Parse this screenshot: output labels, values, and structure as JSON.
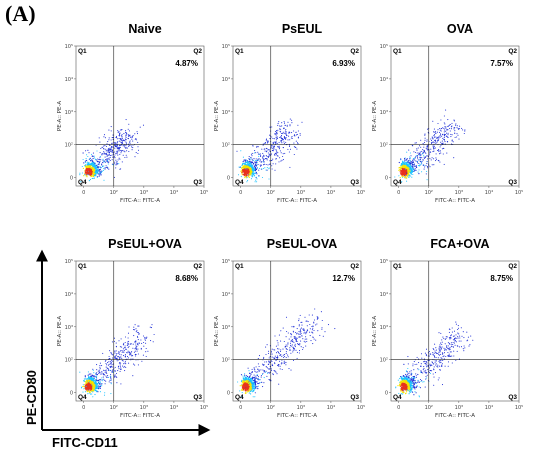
{
  "figure_label": "(A)",
  "axis_titles": {
    "x": "FITC-CD11",
    "y": "PE-CD80"
  },
  "colors": {
    "dots": "#1f2fd6",
    "mid": "#19c2ff",
    "hot": "#f5e400",
    "core": "#e8321e"
  },
  "chart_data": [
    {
      "type": "scatter",
      "title": "Naive",
      "xlabel": "FITC-A:: FITC-A",
      "ylabel": "PE-A:: PE-A",
      "quadrants": {
        "q1": "Q1",
        "q2": "Q2",
        "q3": "Q3",
        "q4": "Q4"
      },
      "q2_percent": "4.87%",
      "x_gate": 100,
      "y_gate": 100,
      "xticks": [
        "0",
        "10²",
        "10³",
        "10⁴",
        "10⁵"
      ],
      "yticks": [
        "0",
        "10²",
        "10³",
        "10⁴",
        "10⁵"
      ]
    },
    {
      "type": "scatter",
      "title": "PsEUL",
      "xlabel": "FITC-A:: FITC-A",
      "ylabel": "PE-A:: PE-A",
      "quadrants": {
        "q1": "Q1",
        "q2": "Q2",
        "q3": "Q3",
        "q4": "Q4"
      },
      "q2_percent": "6.93%",
      "x_gate": 100,
      "y_gate": 100,
      "xticks": [
        "0",
        "10²",
        "10³",
        "10⁴",
        "10⁵"
      ],
      "yticks": [
        "0",
        "10²",
        "10³",
        "10⁴",
        "10⁵"
      ]
    },
    {
      "type": "scatter",
      "title": "OVA",
      "xlabel": "FITC-A:: FITC-A",
      "ylabel": "PE-A:: PE-A",
      "quadrants": {
        "q1": "Q1",
        "q2": "Q2",
        "q3": "Q3",
        "q4": "Q4"
      },
      "q2_percent": "7.57%",
      "x_gate": 100,
      "y_gate": 100,
      "xticks": [
        "0",
        "10²",
        "10³",
        "10⁴",
        "10⁵"
      ],
      "yticks": [
        "0",
        "10²",
        "10³",
        "10⁴",
        "10⁵"
      ]
    },
    {
      "type": "scatter",
      "title": "PsEUL+OVA",
      "xlabel": "FITC-A:: FITC-A",
      "ylabel": "PE-A:: PE-A",
      "quadrants": {
        "q1": "Q1",
        "q2": "Q2",
        "q3": "Q3",
        "q4": "Q4"
      },
      "q2_percent": "8.68%",
      "x_gate": 100,
      "y_gate": 100,
      "xticks": [
        "0",
        "10²",
        "10³",
        "10⁴",
        "10⁵"
      ],
      "yticks": [
        "0",
        "10²",
        "10³",
        "10⁴",
        "10⁵"
      ]
    },
    {
      "type": "scatter",
      "title": "PsEUL-OVA",
      "xlabel": "FITC-A:: FITC-A",
      "ylabel": "PE-A:: PE-A",
      "quadrants": {
        "q1": "Q1",
        "q2": "Q2",
        "q3": "Q3",
        "q4": "Q4"
      },
      "q2_percent": "12.7%",
      "x_gate": 100,
      "y_gate": 100,
      "xticks": [
        "0",
        "10²",
        "10³",
        "10⁴",
        "10⁵"
      ],
      "yticks": [
        "0",
        "10²",
        "10³",
        "10⁴",
        "10⁵"
      ]
    },
    {
      "type": "scatter",
      "title": "FCA+OVA",
      "xlabel": "FITC-A:: FITC-A",
      "ylabel": "PE-A:: PE-A",
      "quadrants": {
        "q1": "Q1",
        "q2": "Q2",
        "q3": "Q3",
        "q4": "Q4"
      },
      "q2_percent": "8.75%",
      "x_gate": 100,
      "y_gate": 100,
      "xticks": [
        "0",
        "10²",
        "10³",
        "10⁴",
        "10⁵"
      ],
      "yticks": [
        "0",
        "10²",
        "10³",
        "10⁴",
        "10⁵"
      ]
    }
  ]
}
